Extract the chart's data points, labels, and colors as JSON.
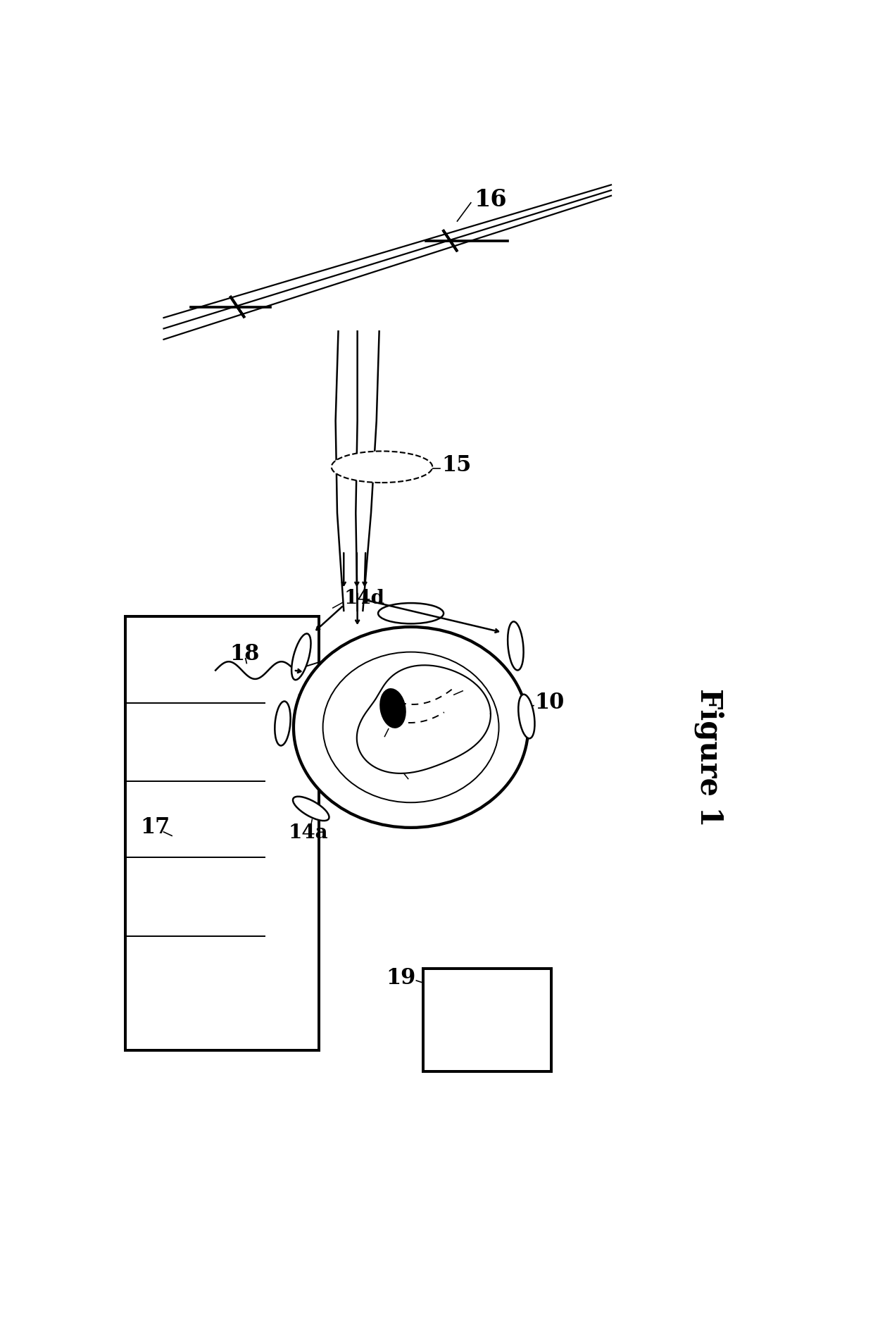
{
  "bg_color": "#ffffff",
  "line_color": "#000000",
  "fig_width": 12.4,
  "fig_height": 18.98,
  "title": "Figure 1"
}
